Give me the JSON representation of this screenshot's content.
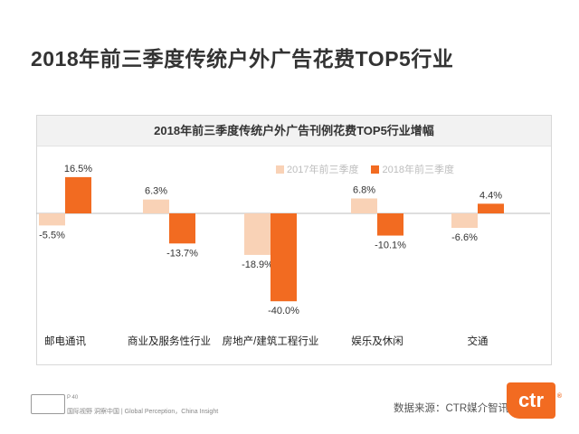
{
  "page": {
    "title": "2018年前三季度传统户外广告花费TOP5行业",
    "page_number": "P 40",
    "footer_text": "国际视野 洞察中国 | Global Perception，China Insight",
    "source": "数据来源：CTR媒介智讯",
    "logo_text": "ctr",
    "logo_mark": "®",
    "watermark": "CTR媒介智讯"
  },
  "colors": {
    "series_2017": "#f9d2b6",
    "series_2018": "#f26b21",
    "title_text": "#333333"
  },
  "chart_data": {
    "type": "bar",
    "title": "2018年前三季度传统户外广告刊例花费TOP5行业增幅",
    "categories": [
      "邮电通讯",
      "商业及服务性行业",
      "房地产/建筑工程行业",
      "娱乐及休闲",
      "交通"
    ],
    "series": [
      {
        "name": "2017年前三季度",
        "values": [
          -5.5,
          6.3,
          -18.9,
          6.8,
          -6.6
        ],
        "labels": [
          "-5.5%",
          "6.3%",
          "-18.9%",
          "6.8%",
          "-6.6%"
        ]
      },
      {
        "name": "2018年前三季度",
        "values": [
          16.5,
          -13.7,
          -40.0,
          -10.1,
          4.4
        ],
        "labels": [
          "16.5%",
          "-13.7%",
          "-40.0%",
          "-10.1%",
          "4.4%"
        ]
      }
    ],
    "unit": "%",
    "ylim": [
      -40,
      16.5
    ],
    "grid": false,
    "legend_position": "top-center"
  }
}
